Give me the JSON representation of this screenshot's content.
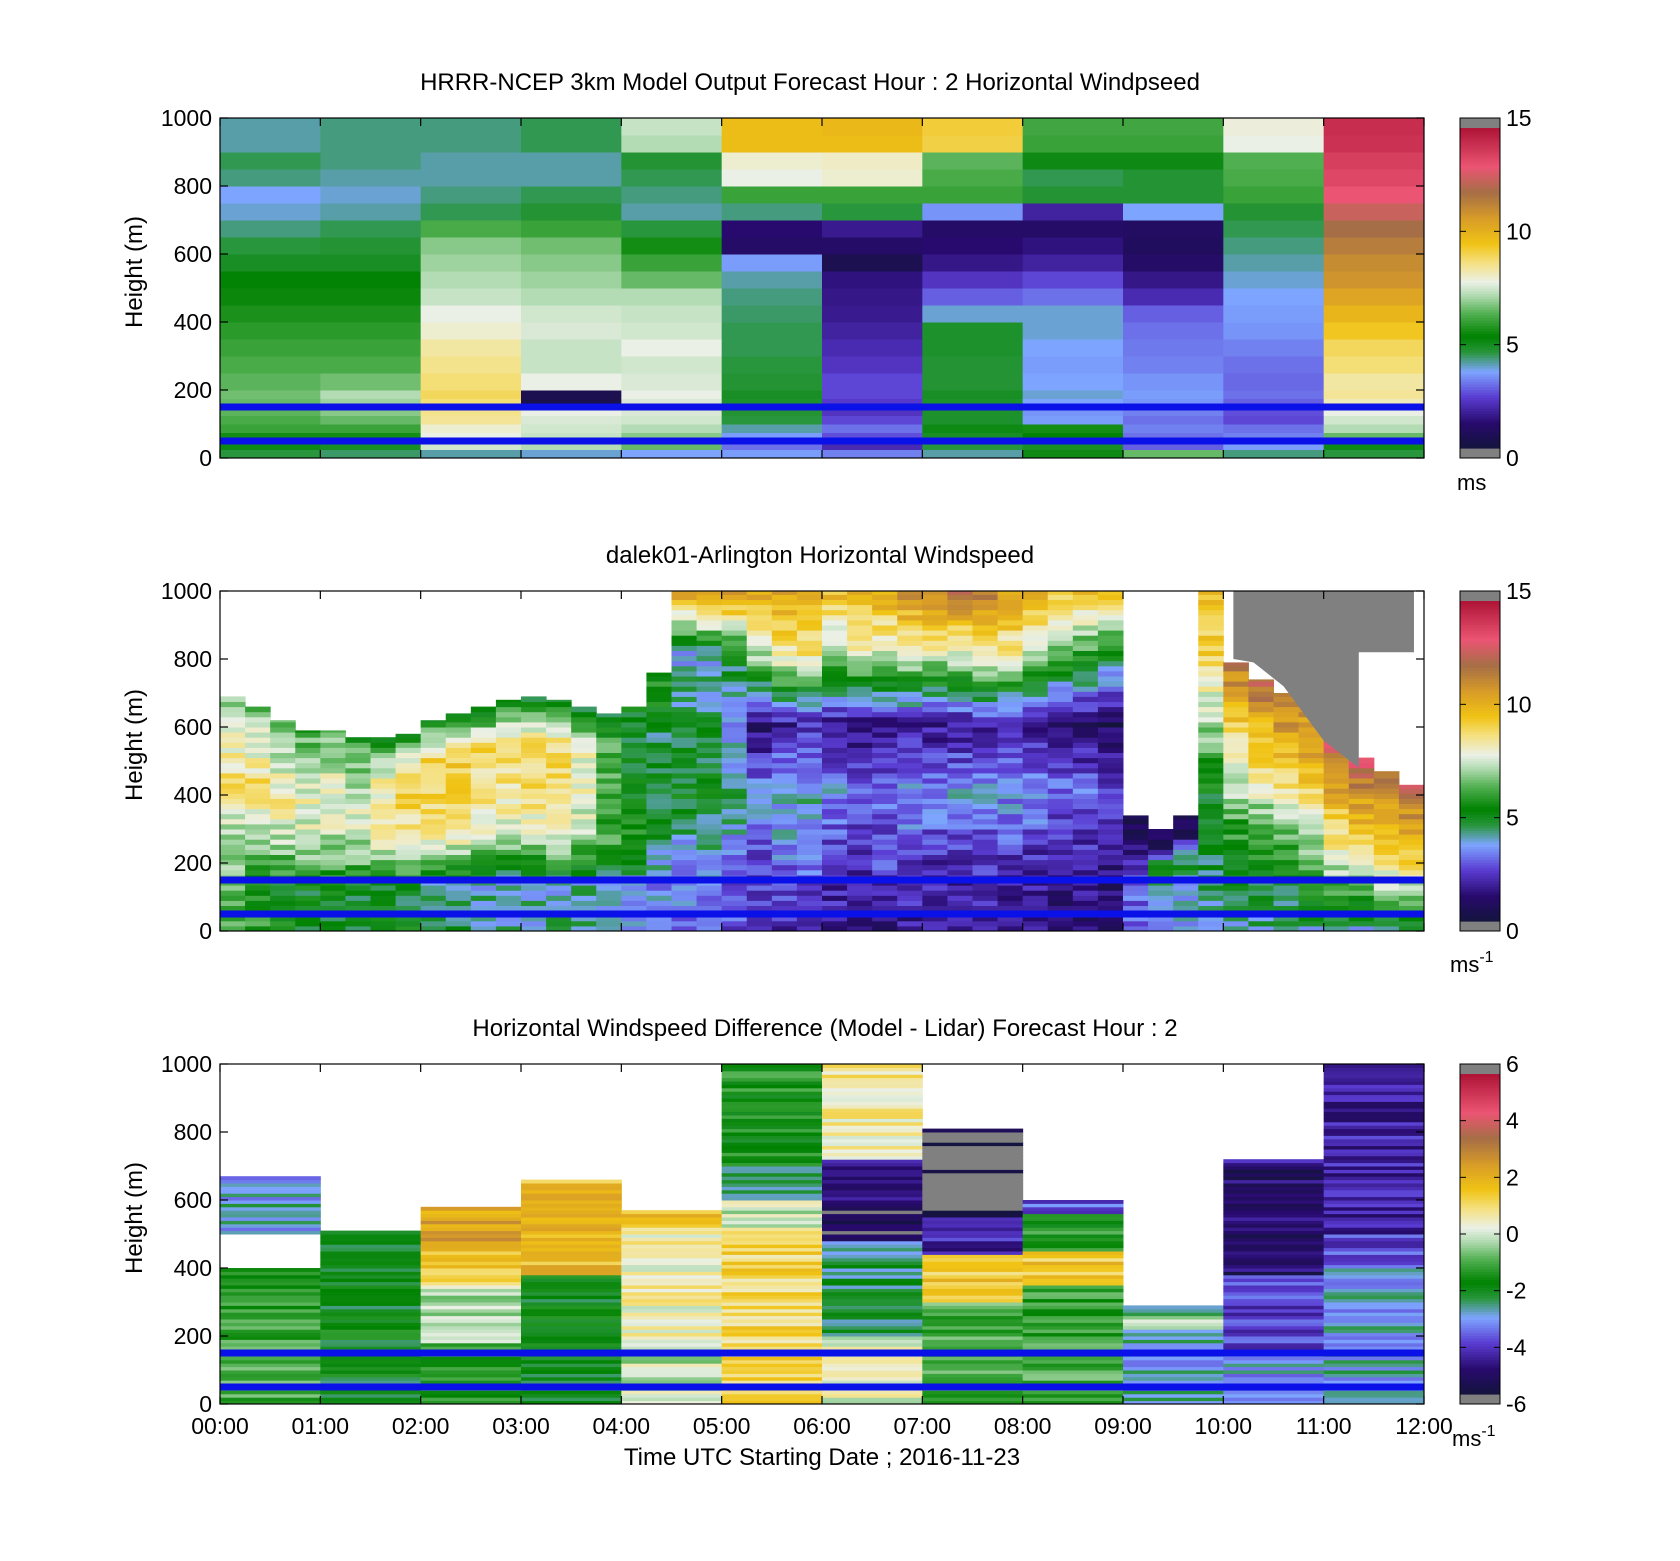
{
  "chart_data": [
    {
      "type": "heatmap",
      "title": "HRRR-NCEP 3km Model Output   Forecast Hour : 2 Horizontal Windpseed",
      "ylabel": "Height (m)",
      "ylim": [
        0,
        1000
      ],
      "yticks": [
        "0",
        "200",
        "400",
        "600",
        "800",
        "1000"
      ],
      "xlim_hours": [
        0,
        12
      ],
      "colorbar": {
        "range": [
          0,
          15
        ],
        "ticks": [
          "0",
          "5",
          "10",
          "15"
        ],
        "unit": "ms",
        "unit_sup": ""
      },
      "reference_heights_m": [
        50,
        150
      ],
      "hours": [
        0,
        1,
        2,
        3,
        4,
        5,
        6,
        7,
        8,
        9,
        10,
        11
      ],
      "heights_m": [
        0,
        25,
        50,
        75,
        100,
        125,
        150,
        175,
        200,
        250,
        300,
        350,
        400,
        450,
        500,
        550,
        600,
        650,
        700,
        750,
        800,
        850,
        900,
        950,
        1000
      ],
      "values": [
        [
          4.5,
          4.3,
          4.0,
          3.8,
          3.6,
          3.5,
          3.2,
          4.0,
          5.0,
          6.5,
          4.2,
          4.5
        ],
        [
          5.0,
          4.8,
          7.5,
          7.2,
          6.5,
          3.0,
          2.0,
          4.5,
          4.8,
          2.8,
          3.5,
          5.0
        ],
        [
          5.5,
          5.5,
          7.8,
          7.4,
          6.8,
          3.5,
          2.6,
          4.8,
          5.2,
          3.0,
          3.2,
          6.5
        ],
        [
          6.0,
          6.0,
          8.0,
          7.5,
          7.2,
          4.0,
          3.0,
          5.0,
          5.5,
          3.2,
          3.0,
          7.2
        ],
        [
          6.2,
          6.5,
          8.5,
          7.6,
          7.5,
          4.5,
          2.5,
          4.7,
          3.5,
          3.0,
          2.5,
          7.5
        ],
        [
          6.4,
          6.8,
          8.6,
          7.8,
          7.6,
          4.6,
          2.2,
          4.7,
          3.4,
          3.2,
          2.6,
          7.8
        ],
        [
          6.5,
          7.0,
          8.8,
          0.4,
          7.6,
          4.7,
          2.3,
          4.7,
          3.6,
          3.4,
          2.8,
          8.2
        ],
        [
          6.6,
          7.2,
          9.0,
          0.5,
          7.8,
          4.8,
          2.5,
          4.8,
          3.8,
          3.5,
          3.0,
          8.5
        ],
        [
          6.4,
          6.6,
          8.8,
          7.8,
          7.6,
          4.6,
          2.5,
          4.6,
          3.6,
          3.4,
          2.9,
          8.4
        ],
        [
          6.2,
          6.2,
          8.6,
          7.4,
          7.5,
          4.5,
          2.2,
          4.6,
          3.5,
          3.2,
          3.0,
          8.8
        ],
        [
          6.0,
          6.0,
          8.4,
          7.4,
          7.8,
          4.4,
          2.0,
          4.7,
          3.6,
          3.1,
          3.2,
          9.0
        ],
        [
          5.8,
          5.8,
          8.0,
          7.6,
          7.5,
          4.4,
          1.8,
          4.7,
          3.8,
          3.0,
          3.4,
          9.5
        ],
        [
          5.6,
          5.6,
          7.8,
          7.5,
          7.4,
          4.3,
          1.6,
          3.8,
          3.8,
          2.8,
          3.5,
          10.0
        ],
        [
          5.4,
          5.4,
          7.4,
          7.2,
          7.2,
          4.2,
          1.5,
          2.8,
          3.0,
          2.0,
          3.6,
          10.5
        ],
        [
          5.2,
          5.2,
          7.2,
          7.0,
          6.5,
          4.0,
          1.4,
          2.2,
          2.5,
          1.5,
          3.8,
          11.0
        ],
        [
          4.8,
          4.8,
          7.0,
          6.8,
          6.0,
          3.5,
          0.5,
          1.5,
          1.8,
          1.0,
          4.0,
          11.2
        ],
        [
          4.5,
          4.6,
          6.8,
          6.6,
          5.5,
          1.0,
          1.0,
          1.2,
          1.4,
          0.8,
          4.2,
          11.6
        ],
        [
          4.2,
          4.4,
          6.2,
          6.0,
          4.5,
          1.2,
          1.6,
          1.0,
          1.0,
          0.9,
          4.4,
          12.0
        ],
        [
          3.8,
          4.0,
          4.4,
          4.6,
          4.0,
          4.2,
          4.5,
          3.4,
          1.8,
          3.6,
          4.6,
          12.6
        ],
        [
          3.6,
          3.8,
          4.2,
          4.4,
          4.2,
          6.0,
          6.0,
          6.0,
          4.6,
          4.6,
          6.0,
          13.2
        ],
        [
          4.2,
          4.0,
          4.0,
          4.0,
          4.4,
          7.8,
          8.0,
          6.2,
          4.4,
          4.6,
          6.2,
          13.6
        ],
        [
          4.4,
          4.2,
          4.0,
          4.0,
          4.6,
          8.0,
          8.1,
          6.4,
          5.0,
          5.0,
          6.3,
          13.8
        ],
        [
          4.0,
          4.2,
          4.2,
          4.4,
          7.2,
          9.8,
          9.8,
          9.2,
          6.0,
          6.0,
          7.8,
          14.2
        ],
        [
          4.0,
          4.2,
          4.2,
          4.4,
          7.4,
          9.8,
          9.9,
          9.3,
          6.1,
          6.1,
          7.9,
          14.3
        ]
      ]
    },
    {
      "type": "heatmap",
      "title": "dalek01-Arlington  Horizontal Windspeed",
      "ylabel": "Height (m)",
      "ylim": [
        0,
        1000
      ],
      "yticks": [
        "0",
        "200",
        "400",
        "600",
        "800",
        "1000"
      ],
      "xlim_hours": [
        0,
        12
      ],
      "colorbar": {
        "range": [
          0,
          15
        ],
        "ticks": [
          "0",
          "5",
          "10",
          "15"
        ],
        "unit": "ms",
        "unit_sup": "-1"
      },
      "reference_heights_m": [
        50,
        150
      ],
      "hours": [
        0,
        0.25,
        0.5,
        0.75,
        1,
        1.25,
        1.5,
        1.75,
        2,
        2.25,
        2.5,
        2.75,
        3,
        3.25,
        3.5,
        3.75,
        4,
        4.25,
        4.5,
        4.75,
        5,
        5.25,
        5.5,
        5.75,
        6,
        6.25,
        6.5,
        6.75,
        7,
        7.25,
        7.5,
        7.75,
        8,
        8.25,
        8.5,
        8.75,
        9,
        9.25,
        9.5,
        9.75,
        10,
        10.25,
        10.5,
        10.75,
        11,
        11.25,
        11.5,
        11.75,
        12
      ],
      "tops_m": [
        690,
        660,
        620,
        590,
        590,
        570,
        570,
        580,
        620,
        640,
        660,
        680,
        690,
        680,
        660,
        640,
        660,
        760,
        1000,
        1000,
        1000,
        1000,
        1000,
        1000,
        1000,
        1000,
        1000,
        1000,
        1000,
        1000,
        1000,
        1000,
        1000,
        1000,
        1000,
        1000,
        340,
        300,
        340,
        1000,
        790,
        740,
        700,
        670,
        560,
        510,
        470,
        430
      ],
      "value_columns": [
        [
          6,
          6.5,
          7,
          9,
          8,
          6.5
        ],
        [
          6,
          5.5,
          7,
          9,
          8,
          6.5
        ],
        [
          5.5,
          5,
          7,
          8.5,
          7.5,
          6
        ],
        [
          5,
          5,
          7,
          8,
          7.5,
          6
        ],
        [
          5,
          5,
          7,
          8,
          7.5,
          6
        ],
        [
          5,
          4.8,
          7,
          7.8,
          7,
          5.5
        ],
        [
          5,
          4.8,
          7.5,
          8.5,
          8,
          5
        ],
        [
          5,
          4.5,
          8,
          9,
          9,
          5
        ],
        [
          4.5,
          4,
          8,
          9,
          9.5,
          5
        ],
        [
          4.5,
          4,
          8,
          9,
          9.5,
          5
        ],
        [
          4,
          4,
          7.5,
          8.5,
          9,
          4.5
        ],
        [
          4,
          4,
          7.5,
          8.5,
          9,
          4.5
        ],
        [
          4,
          4,
          7.5,
          9,
          9,
          4.5
        ],
        [
          4,
          4,
          8,
          9,
          9,
          4.5
        ],
        [
          4,
          4,
          7,
          8,
          8,
          4.5
        ],
        [
          3.5,
          3.5,
          6,
          6,
          6.5,
          4.5
        ],
        [
          3.5,
          3.5,
          5.5,
          5,
          5,
          5
        ],
        [
          3,
          3.5,
          5,
          4.8,
          4.5,
          6
        ],
        [
          3,
          3.5,
          5,
          4.5,
          3.5,
          11
        ],
        [
          3,
          3.5,
          5,
          4.5,
          3.8,
          11.5
        ],
        [
          2.5,
          3,
          4.5,
          3,
          5,
          11
        ],
        [
          2,
          2.5,
          3.5,
          1,
          7,
          10.5
        ],
        [
          2,
          3,
          4,
          1.5,
          8.5,
          10.5
        ],
        [
          2,
          3,
          4,
          2,
          8.5,
          10.5
        ],
        [
          1.8,
          2,
          3.5,
          1.5,
          7,
          10
        ],
        [
          1.5,
          2,
          3,
          1.2,
          7.5,
          10.5
        ],
        [
          1.5,
          2.5,
          3,
          1.2,
          7.5,
          10.5
        ],
        [
          1.5,
          2.5,
          3.5,
          1.5,
          8,
          11
        ],
        [
          1.5,
          2,
          3.5,
          1.5,
          7.5,
          11.5
        ],
        [
          1.5,
          2,
          3.5,
          1.5,
          7.5,
          12
        ],
        [
          1.5,
          2.2,
          3.5,
          1.8,
          8,
          11.5
        ],
        [
          1.5,
          2.2,
          3.5,
          1.8,
          8,
          11
        ],
        [
          1.5,
          2,
          3.5,
          1.5,
          7,
          10.5
        ],
        [
          1.2,
          1.8,
          3,
          1,
          6,
          10
        ],
        [
          1.2,
          1.8,
          3,
          1,
          5.5,
          10
        ],
        [
          1,
          1.5,
          2.5,
          0.8,
          5,
          10
        ],
        [
          2.5,
          3,
          2.5,
          1.8,
          1,
          1
        ],
        [
          3.5,
          3.5,
          4,
          5,
          1,
          1
        ],
        [
          3.5,
          3.8,
          4,
          5,
          1,
          1
        ],
        [
          4,
          4.5,
          5,
          7,
          9,
          10
        ],
        [
          4,
          5,
          6,
          8,
          9.5,
          12
        ],
        [
          4,
          5,
          6,
          8.5,
          10,
          12.5
        ],
        [
          4,
          5,
          6.5,
          8.5,
          10.5,
          12
        ],
        [
          4,
          5.5,
          7,
          9,
          10.5,
          11
        ],
        [
          4,
          6,
          8,
          9.5,
          11,
          13
        ],
        [
          4,
          6,
          8,
          10,
          11,
          13.5
        ],
        [
          4,
          6.5,
          8.5,
          10,
          11,
          12
        ],
        [
          4,
          6.5,
          8.5,
          10.5,
          11,
          13.5
        ]
      ],
      "no_data_color": "#ffffff",
      "high_region": {
        "value_above_colorbar": true,
        "color": "#808080"
      }
    },
    {
      "type": "heatmap",
      "title": "Horizontal Windspeed Difference (Model - Lidar) Forecast Hour : 2",
      "xlabel": "Time UTC  Starting Date ; 2016-11-23",
      "ylabel": "Height (m)",
      "ylim": [
        0,
        1000
      ],
      "yticks": [
        "0",
        "200",
        "400",
        "600",
        "800",
        "1000"
      ],
      "xticks": [
        "00:00",
        "01:00",
        "02:00",
        "03:00",
        "04:00",
        "05:00",
        "06:00",
        "07:00",
        "08:00",
        "09:00",
        "10:00",
        "11:00",
        "12:00"
      ],
      "xlim_hours": [
        0,
        12
      ],
      "colorbar": {
        "range": [
          -6,
          6
        ],
        "ticks": [
          "-6",
          "-4",
          "-2",
          "0",
          "2",
          "4",
          "6"
        ],
        "unit": "ms",
        "unit_sup": "-1"
      },
      "reference_heights_m": [
        50,
        150
      ],
      "columns": [
        {
          "hour": 0,
          "segments": [
            [
              0,
              400,
              -1.2
            ],
            [
              500,
              670,
              -3.0
            ]
          ]
        },
        {
          "hour": 1,
          "segments": [
            [
              0,
              510,
              -2.0
            ]
          ]
        },
        {
          "hour": 2,
          "segments": [
            [
              0,
              180,
              -1.5
            ],
            [
              180,
              350,
              -0.3
            ],
            [
              350,
              460,
              1.5
            ],
            [
              460,
              580,
              2.4
            ]
          ]
        },
        {
          "hour": 3,
          "segments": [
            [
              0,
              380,
              -2.0
            ],
            [
              380,
              660,
              1.8
            ]
          ]
        },
        {
          "hour": 4,
          "segments": [
            [
              0,
              160,
              -0.1
            ],
            [
              160,
              500,
              0.5
            ],
            [
              500,
              540,
              1.2
            ],
            [
              540,
              570,
              1.6
            ]
          ]
        },
        {
          "hour": 5,
          "segments": [
            [
              0,
              520,
              1.2
            ],
            [
              520,
              600,
              0.0
            ],
            [
              600,
              700,
              -2.8
            ],
            [
              700,
              1000,
              -1.6
            ]
          ]
        },
        {
          "hour": 6,
          "segments": [
            [
              0,
              200,
              0.3
            ],
            [
              200,
              480,
              -2.5
            ],
            [
              480,
              600,
              -5.5
            ],
            [
              600,
              720,
              -5.0
            ],
            [
              720,
              1000,
              0.7
            ]
          ]
        },
        {
          "hour": 7,
          "segments": [
            [
              0,
              300,
              -1.0
            ],
            [
              300,
              440,
              1.6
            ],
            [
              440,
              550,
              -4.5
            ],
            [
              550,
              790,
              -6.5
            ],
            [
              790,
              810,
              -5.8
            ]
          ]
        },
        {
          "hour": 8,
          "segments": [
            [
              0,
              350,
              -1.2
            ],
            [
              350,
              450,
              1.6
            ],
            [
              450,
              560,
              -1.5
            ],
            [
              560,
              600,
              -3.8
            ]
          ]
        },
        {
          "hour": 9,
          "segments": [
            [
              0,
              220,
              -3.0
            ],
            [
              220,
              260,
              -0.5
            ],
            [
              260,
              290,
              -3.0
            ]
          ]
        },
        {
          "hour": 10,
          "segments": [
            [
              0,
              150,
              -3.2
            ],
            [
              150,
              380,
              -4.0
            ],
            [
              380,
              700,
              -5.2
            ],
            [
              700,
              720,
              -4.6
            ]
          ]
        },
        {
          "hour": 11,
          "segments": [
            [
              0,
              400,
              -3.0
            ],
            [
              400,
              500,
              -4.0
            ],
            [
              500,
              1000,
              -4.6
            ]
          ]
        }
      ]
    }
  ]
}
